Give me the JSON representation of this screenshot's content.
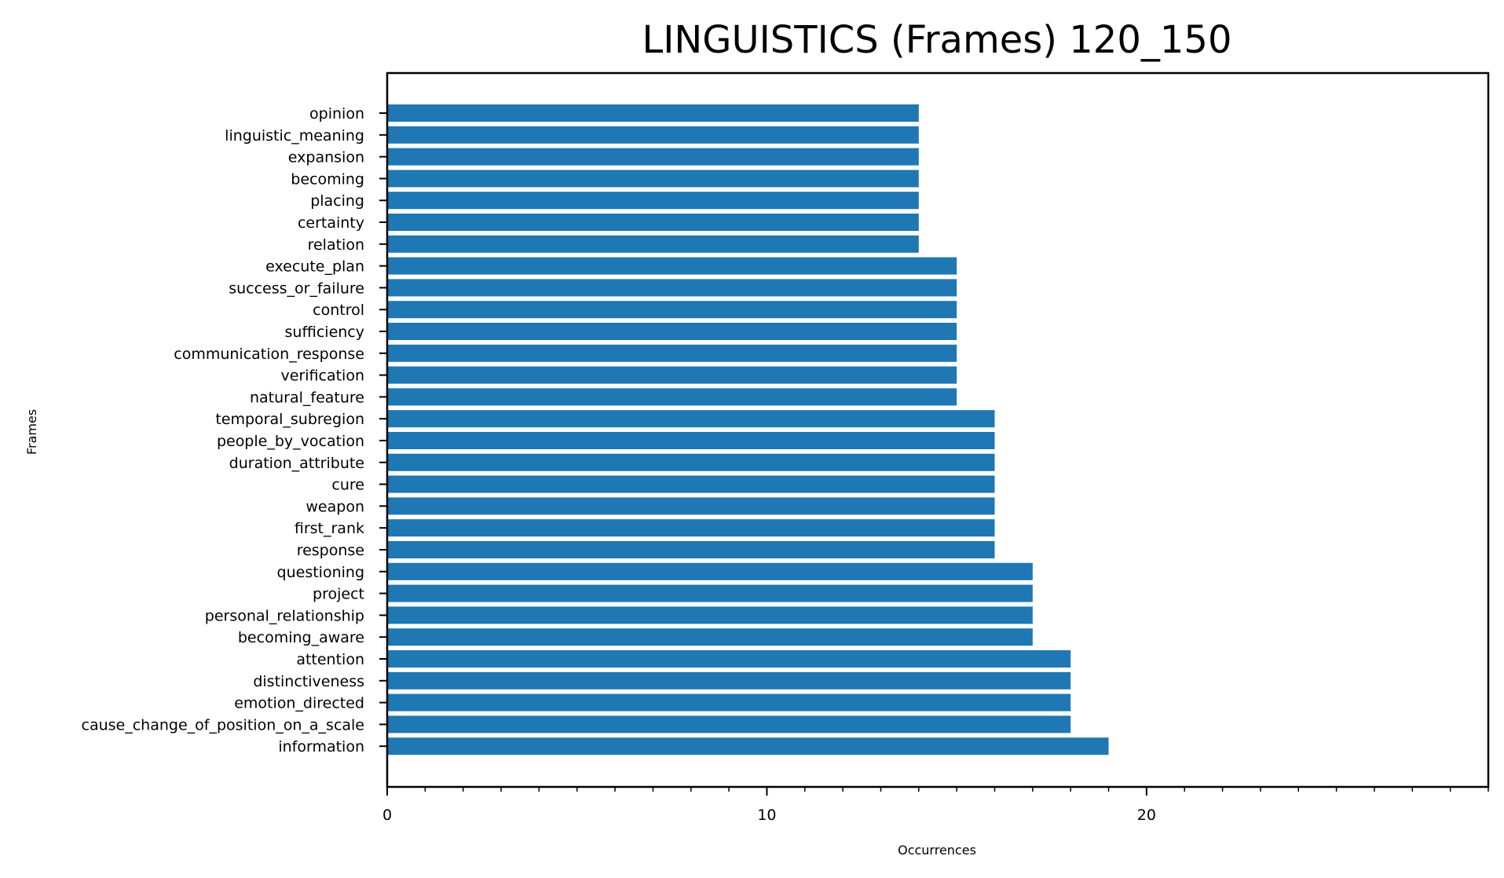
{
  "chart_data": {
    "type": "bar",
    "orientation": "horizontal",
    "title": "LINGUISTICS (Frames) 120_150",
    "xlabel": "Occurrences",
    "ylabel": "Frames",
    "xlim": [
      0,
      29
    ],
    "x_ticks": [
      0,
      10,
      20
    ],
    "x_minor_step": 1,
    "bar_color": "#1f77b4",
    "grid": false,
    "categories": [
      "opinion",
      "linguistic_meaning",
      "expansion",
      "becoming",
      "placing",
      "certainty",
      "relation",
      "execute_plan",
      "success_or_failure",
      "control",
      "sufficiency",
      "communication_response",
      "verification",
      "natural_feature",
      "temporal_subregion",
      "people_by_vocation",
      "duration_attribute",
      "cure",
      "weapon",
      "first_rank",
      "response",
      "questioning",
      "project",
      "personal_relationship",
      "becoming_aware",
      "attention",
      "distinctiveness",
      "emotion_directed",
      "cause_change_of_position_on_a_scale",
      "information"
    ],
    "values": [
      14,
      14,
      14,
      14,
      14,
      14,
      14,
      15,
      15,
      15,
      15,
      15,
      15,
      15,
      16,
      16,
      16,
      16,
      16,
      16,
      16,
      17,
      17,
      17,
      17,
      18,
      18,
      18,
      18,
      19
    ]
  }
}
